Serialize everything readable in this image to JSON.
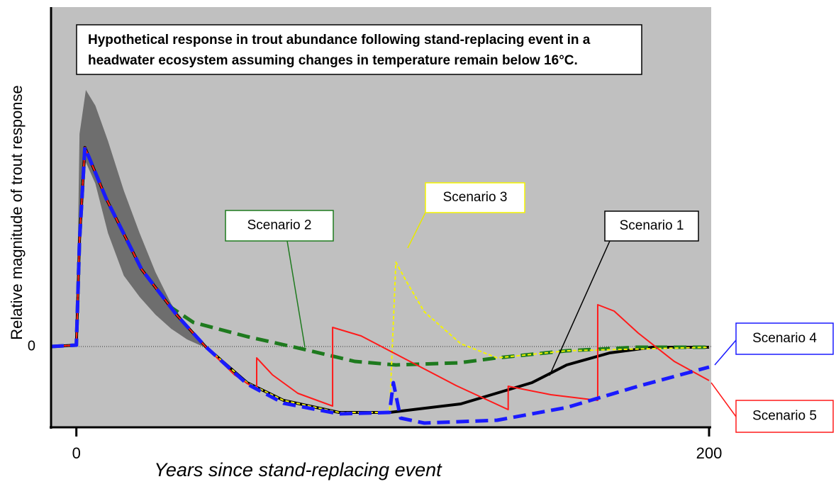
{
  "chart_data": {
    "type": "line",
    "title": [
      "Hypothetical response in trout abundance following stand-replacing event in a",
      "headwater ecosystem assuming changes in temperature remain below 16°C."
    ],
    "x_label": "Years since stand-replacing event",
    "y_label": "Relative magnitude of trout response",
    "xlim": [
      -8,
      200
    ],
    "ylim": [
      -1.14,
      4.79
    ],
    "xticks": [
      0,
      200
    ],
    "yticks": [
      0
    ],
    "grid": true,
    "band": {
      "color": "#6e6e6e",
      "x": [
        0,
        1,
        3,
        6,
        10,
        15,
        20,
        25,
        30,
        35,
        40
      ],
      "upper": [
        0,
        3.0,
        3.62,
        3.4,
        2.9,
        2.2,
        1.6,
        1.05,
        0.6,
        0.3,
        0
      ],
      "lower": [
        0,
        1.8,
        2.6,
        2.3,
        1.6,
        1.0,
        0.7,
        0.45,
        0.25,
        0.1,
        0
      ]
    },
    "series": [
      {
        "name": "Scenario 1",
        "color": "#000000",
        "style": "solid",
        "x": [
          -8,
          0,
          1,
          2.7,
          9.4,
          20.6,
          31.8,
          40.8,
          54,
          65.5,
          83,
          99,
          121.5,
          144,
          155,
          168.6,
          182,
          200
        ],
        "values": [
          0,
          0.02,
          1.5,
          2.81,
          2.09,
          1.09,
          0.44,
          0,
          -0.51,
          -0.76,
          -0.93,
          -0.93,
          -0.81,
          -0.51,
          -0.26,
          -0.09,
          -0.01,
          -0.01
        ]
      },
      {
        "name": "Scenario 2",
        "color": "#1e7a1e",
        "style": "dashed",
        "x": [
          -8,
          0,
          1,
          2.7,
          9.4,
          20.6,
          30,
          37,
          54,
          72,
          88,
          101,
          121,
          133,
          155,
          177,
          200
        ],
        "values": [
          0,
          0.02,
          1.5,
          2.81,
          2.09,
          1.09,
          0.55,
          0.34,
          0.14,
          -0.04,
          -0.21,
          -0.26,
          -0.23,
          -0.16,
          -0.06,
          -0.01,
          -0.01
        ]
      },
      {
        "name": "Scenario 3",
        "color": "#f5f500",
        "style": "dotted",
        "x": [
          -8,
          0,
          1,
          2.7,
          9.4,
          20.6,
          31.8,
          40.8,
          54,
          65.5,
          83,
          99,
          101,
          104.7,
          110,
          121.5,
          133,
          155,
          200
        ],
        "values": [
          0,
          0.02,
          1.5,
          2.81,
          2.09,
          1.09,
          0.44,
          0,
          -0.51,
          -0.76,
          -0.93,
          -0.93,
          1.19,
          0.89,
          0.49,
          0.04,
          -0.16,
          -0.06,
          -0.01
        ]
      },
      {
        "name": "Scenario 4",
        "color": "#1a1aff",
        "style": "dashed",
        "x": [
          -8,
          0,
          1,
          2.7,
          9.4,
          20.6,
          31.8,
          40.8,
          54,
          65.5,
          83,
          99,
          100.2,
          102.5,
          110,
          133,
          155,
          177.6,
          200
        ],
        "values": [
          0,
          0.02,
          1.5,
          2.81,
          2.09,
          1.09,
          0.44,
          0,
          -0.53,
          -0.8,
          -0.95,
          -0.93,
          -0.51,
          -1.01,
          -1.08,
          -1.04,
          -0.86,
          -0.56,
          -0.29
        ]
      },
      {
        "name": "Scenario 5",
        "color": "#ff1a1a",
        "style": "solid",
        "x": [
          -8,
          0,
          1,
          2.7,
          9.4,
          20.6,
          31.8,
          40.8,
          50,
          57,
          57,
          62,
          70,
          81,
          81,
          90,
          105,
          120,
          136.5,
          136.5,
          150,
          164.8,
          164.8,
          170,
          177.6,
          189,
          200
        ],
        "values": [
          0,
          0.02,
          1.5,
          2.81,
          2.09,
          1.09,
          0.44,
          0,
          -0.4,
          -0.61,
          -0.16,
          -0.4,
          -0.66,
          -0.84,
          0.27,
          0.15,
          -0.2,
          -0.55,
          -0.89,
          -0.56,
          -0.68,
          -0.76,
          0.59,
          0.5,
          0.19,
          -0.21,
          -0.48
        ]
      }
    ]
  }
}
